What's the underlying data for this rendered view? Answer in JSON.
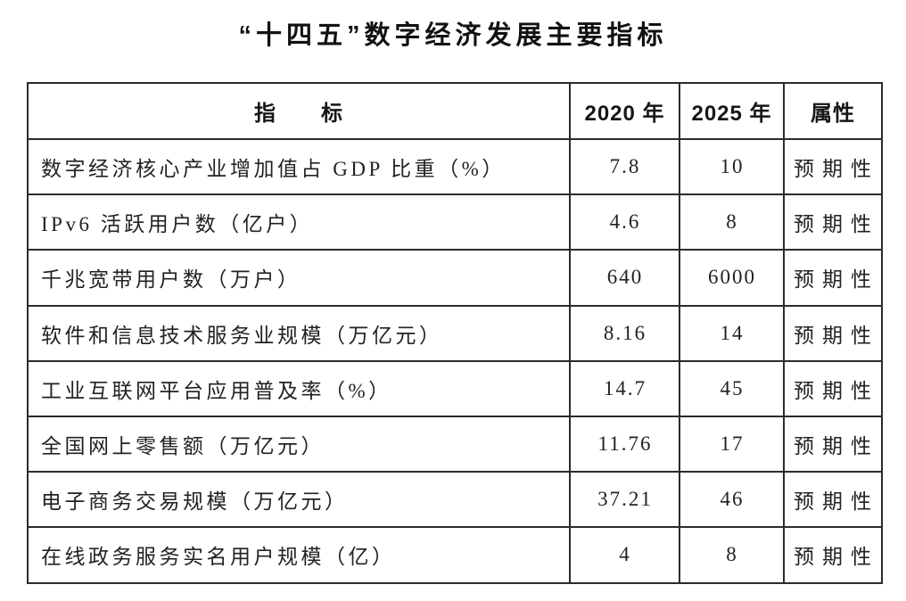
{
  "title": "“十四五”数字经济发展主要指标",
  "table": {
    "columns": [
      "指　　标",
      "2020 年",
      "2025 年",
      "属性"
    ],
    "rows": [
      {
        "indicator": "数字经济核心产业增加值占 GDP 比重（%）",
        "y2020": "7.8",
        "y2025": "10",
        "attr": "预期性"
      },
      {
        "indicator": "IPv6 活跃用户数（亿户）",
        "y2020": "4.6",
        "y2025": "8",
        "attr": "预期性"
      },
      {
        "indicator": "千兆宽带用户数（万户）",
        "y2020": "640",
        "y2025": "6000",
        "attr": "预期性"
      },
      {
        "indicator": "软件和信息技术服务业规模（万亿元）",
        "y2020": "8.16",
        "y2025": "14",
        "attr": "预期性"
      },
      {
        "indicator": "工业互联网平台应用普及率（%）",
        "y2020": "14.7",
        "y2025": "45",
        "attr": "预期性"
      },
      {
        "indicator": "全国网上零售额（万亿元）",
        "y2020": "11.76",
        "y2025": "17",
        "attr": "预期性"
      },
      {
        "indicator": "电子商务交易规模（万亿元）",
        "y2020": "37.21",
        "y2025": "46",
        "attr": "预期性"
      },
      {
        "indicator": "在线政务服务实名用户规模（亿）",
        "y2020": "4",
        "y2025": "8",
        "attr": "预期性"
      }
    ]
  }
}
